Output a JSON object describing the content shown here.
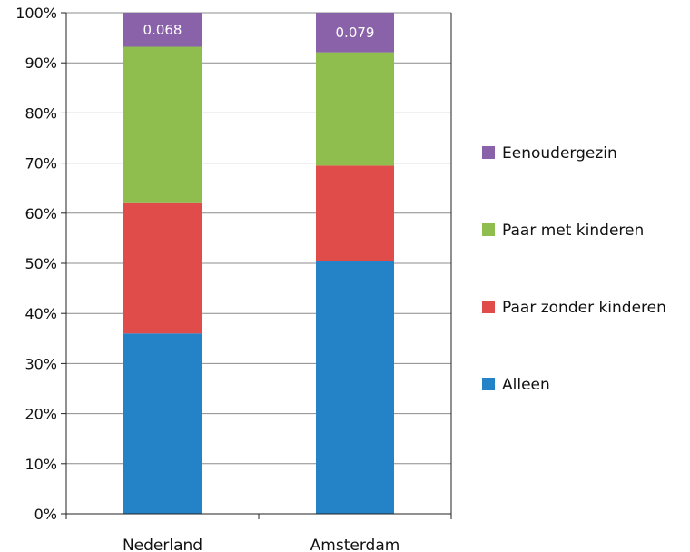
{
  "chart_data": {
    "type": "bar",
    "stacked": true,
    "categories": [
      "Nederland",
      "Amsterdam"
    ],
    "series": [
      {
        "name": "Alleen",
        "values": [
          0.36,
          0.505
        ],
        "color": "#2383c6"
      },
      {
        "name": "Paar zonder kinderen",
        "values": [
          0.26,
          0.19
        ],
        "color": "#e04c4a"
      },
      {
        "name": "Paar met kinderen",
        "values": [
          0.312,
          0.226
        ],
        "color": "#8fbe4f"
      },
      {
        "name": "Eenoudergezin",
        "values": [
          0.068,
          0.079
        ],
        "color": "#8a62aa",
        "data_labels": [
          "0.068",
          "0.079"
        ]
      }
    ],
    "ylim": [
      0,
      1
    ],
    "y_ticks": [
      "0%",
      "10%",
      "20%",
      "30%",
      "40%",
      "50%",
      "60%",
      "70%",
      "80%",
      "90%",
      "100%"
    ],
    "grid": true,
    "legend": {
      "placement": "right",
      "order": [
        "Eenoudergezin",
        "Paar met kinderen",
        "Paar zonder kinderen",
        "Alleen"
      ]
    },
    "title": "",
    "xlabel": "",
    "ylabel": ""
  }
}
